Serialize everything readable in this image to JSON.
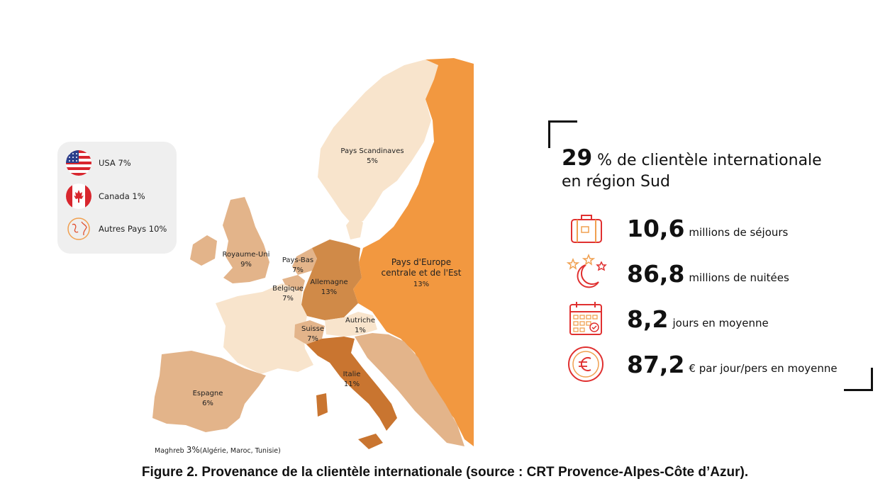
{
  "colors": {
    "light": "#f8e4cc",
    "tan": "#e3b48a",
    "mid": "#d08a48",
    "dark": "#c97530",
    "orange": "#f29840",
    "accent_red": "#e03030"
  },
  "map_labels": {
    "scandinavia": {
      "name": "Pays Scandinaves",
      "pct": "5%"
    },
    "uk": {
      "name": "Royaume-Uni",
      "pct": "9%"
    },
    "netherlands": {
      "name": "Pays-Bas",
      "pct": "7%"
    },
    "belgium": {
      "name": "Belgique",
      "pct": "7%"
    },
    "germany": {
      "name": "Allemagne",
      "pct": "13%"
    },
    "east_line1": "Pays d'Europe",
    "east_line2": "centrale et de l'Est",
    "east_pct": "13%",
    "austria": {
      "name": "Autriche",
      "pct": "1%"
    },
    "switzerland": {
      "name": "Suisse",
      "pct": "7%"
    },
    "italy": {
      "name": "Italie",
      "pct": "11%"
    },
    "spain": {
      "name": "Espagne",
      "pct": "6%"
    }
  },
  "maghreb": {
    "label": "Maghreb",
    "pct": "3%",
    "detail": "(Algérie, Maroc, Tunisie)"
  },
  "legend": [
    {
      "icon": "us-flag-icon",
      "label": "USA 7%"
    },
    {
      "icon": "canada-flag-icon",
      "label": "Canada 1%"
    },
    {
      "icon": "globe-icon",
      "label": "Autres Pays 10%"
    }
  ],
  "headline": {
    "value": "29",
    "text_line1": "% de clientèle internationale",
    "text_line2": "en région Sud"
  },
  "stats": [
    {
      "icon": "suitcase-icon",
      "value": "10,6",
      "text": "millions de séjours"
    },
    {
      "icon": "moon-stars-icon",
      "value": "86,8",
      "text": "millions de nuitées"
    },
    {
      "icon": "calendar-icon",
      "value": "8,2",
      "text": "jours en moyenne"
    },
    {
      "icon": "euro-coin-icon",
      "value": "87,2",
      "text": "€ par jour/pers en moyenne"
    }
  ],
  "caption": "Figure 2. Provenance de la clientèle internationale (source : CRT Provence-Alpes-Côte d’Azur)."
}
